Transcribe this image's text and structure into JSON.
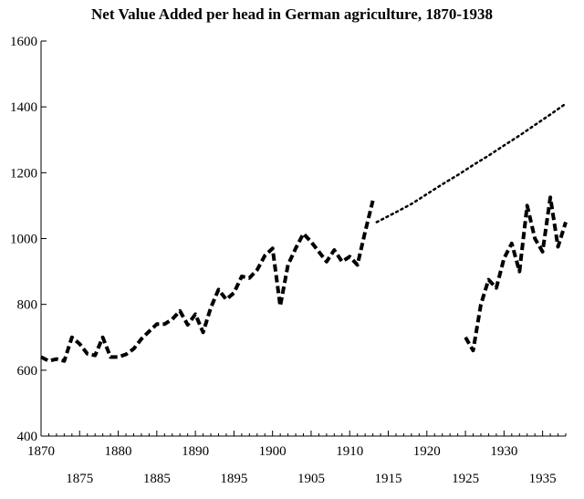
{
  "chart_data": {
    "type": "line",
    "title": "Net Value Added per head in German agriculture, 1870-1938",
    "xlabel": "",
    "ylabel": "",
    "xlim": [
      1870,
      1938
    ],
    "ylim": [
      400,
      1600
    ],
    "grid": false,
    "legend": "none",
    "y_ticks": [
      "400",
      "600",
      "800",
      "1000",
      "1200",
      "1400",
      "1600"
    ],
    "x_ticks_upper": [
      "1870",
      "1880",
      "1890",
      "1900",
      "1910",
      "1920",
      "1930"
    ],
    "x_ticks_lower": [
      "1875",
      "1885",
      "1895",
      "1905",
      "1915",
      "1925",
      "1935"
    ],
    "series": [
      {
        "style": "dashed",
        "color": "#000000",
        "points": [
          [
            1870,
            640
          ],
          [
            1871,
            628
          ],
          [
            1872,
            634
          ],
          [
            1873,
            628
          ],
          [
            1874,
            700
          ],
          [
            1875,
            680
          ],
          [
            1876,
            650
          ],
          [
            1877,
            645
          ],
          [
            1878,
            700
          ],
          [
            1879,
            640
          ],
          [
            1880,
            640
          ],
          [
            1881,
            648
          ],
          [
            1882,
            665
          ],
          [
            1883,
            695
          ],
          [
            1884,
            718
          ],
          [
            1885,
            740
          ],
          [
            1886,
            740
          ],
          [
            1887,
            755
          ],
          [
            1888,
            780
          ],
          [
            1889,
            738
          ],
          [
            1890,
            770
          ],
          [
            1891,
            715
          ],
          [
            1892,
            790
          ],
          [
            1893,
            845
          ],
          [
            1894,
            815
          ],
          [
            1895,
            835
          ],
          [
            1896,
            885
          ],
          [
            1897,
            880
          ],
          [
            1898,
            905
          ],
          [
            1899,
            948
          ],
          [
            1900,
            970
          ],
          [
            1901,
            795
          ],
          [
            1902,
            920
          ],
          [
            1903,
            970
          ],
          [
            1904,
            1015
          ],
          [
            1905,
            990
          ],
          [
            1906,
            960
          ],
          [
            1907,
            930
          ],
          [
            1908,
            965
          ],
          [
            1909,
            930
          ],
          [
            1910,
            945
          ],
          [
            1911,
            920
          ],
          [
            1912,
            1020
          ],
          [
            1913,
            1115
          ]
        ]
      },
      {
        "style": "dotted",
        "color": "#000000",
        "points": [
          [
            1913.5,
            1050
          ],
          [
            1916,
            1080
          ],
          [
            1918,
            1105
          ],
          [
            1920,
            1135
          ],
          [
            1922,
            1165
          ],
          [
            1924,
            1193
          ],
          [
            1926,
            1223
          ],
          [
            1928,
            1252
          ],
          [
            1930,
            1283
          ],
          [
            1932,
            1313
          ],
          [
            1934,
            1345
          ],
          [
            1936,
            1377
          ],
          [
            1938,
            1410
          ]
        ]
      },
      {
        "style": "dashed",
        "color": "#000000",
        "points": [
          [
            1925,
            700
          ],
          [
            1926,
            660
          ],
          [
            1927,
            800
          ],
          [
            1928,
            875
          ],
          [
            1929,
            850
          ],
          [
            1930,
            940
          ],
          [
            1931,
            985
          ],
          [
            1932,
            900
          ],
          [
            1933,
            1100
          ],
          [
            1934,
            1000
          ],
          [
            1935,
            960
          ],
          [
            1936,
            1125
          ],
          [
            1937,
            975
          ],
          [
            1938,
            1050
          ]
        ]
      }
    ]
  }
}
